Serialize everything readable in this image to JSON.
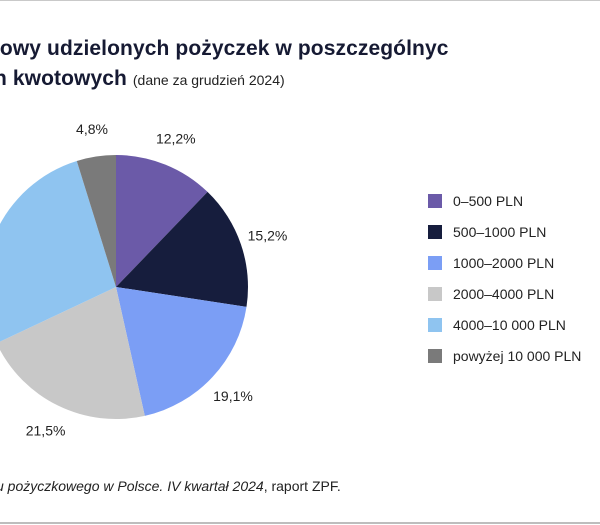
{
  "chart_data": {
    "type": "pie",
    "title": "iowy udzielonych pożyczek w poszczególnyc",
    "title_line2": "h kwotowych",
    "subtitle": "(dane za grudzień 2024)",
    "categories": [
      "0–500 PLN",
      "500–1000 PLN",
      "1000–2000 PLN",
      "2000–4000 PLN",
      "4000–10 000 PLN",
      "powyżej 10 000 PLN"
    ],
    "values": [
      12.2,
      15.2,
      19.1,
      21.5,
      27.2,
      4.8
    ],
    "value_labels": [
      "12,2%",
      "15,2%",
      "19,1%",
      "21,5%",
      "",
      "4,8%"
    ],
    "colors": [
      "#6b5aa8",
      "#161d3d",
      "#7b9ef5",
      "#c8c8c8",
      "#8fc4f0",
      "#7a7a7a"
    ],
    "start_angle_deg": 0,
    "direction": "clockwise",
    "legend_position": "right"
  },
  "source": {
    "italic_part": "u pożyczkowego w Polsce. IV kwartał 2024",
    "rest": ", raport ZPF."
  }
}
